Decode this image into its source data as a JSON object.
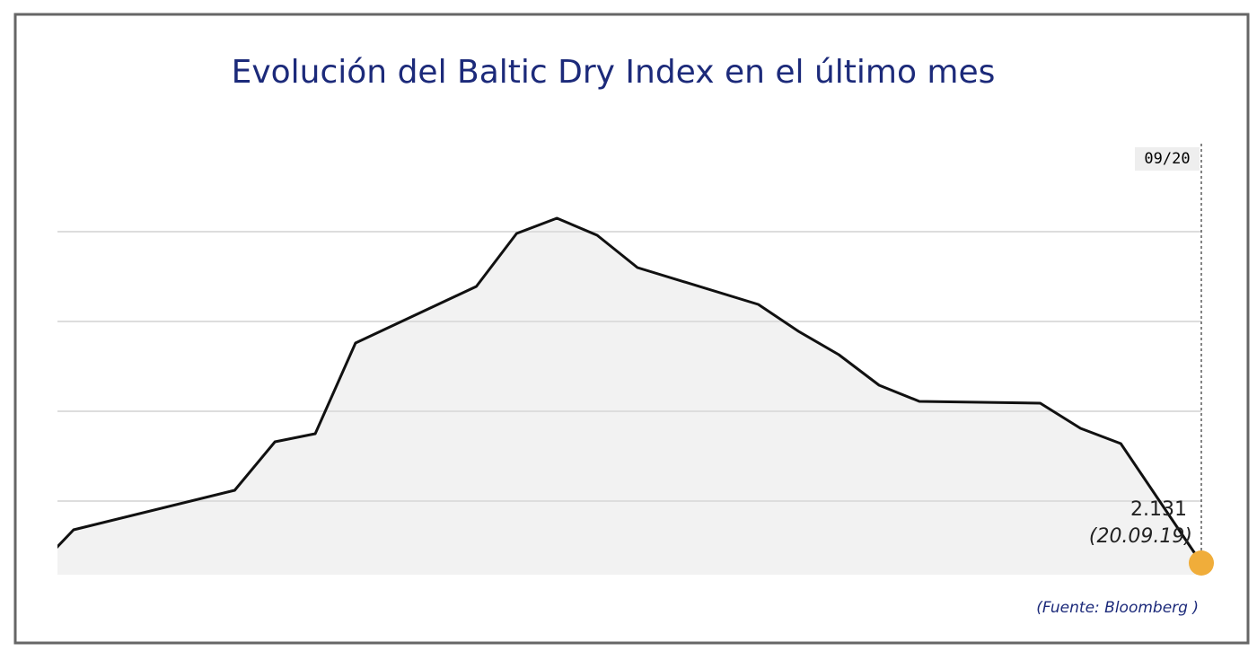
{
  "chart_data": {
    "type": "area",
    "title": "Evolución del Baltic Dry Index en el último mes",
    "x": [
      -29,
      -28,
      -24,
      -23,
      -22,
      -21,
      -18,
      -17,
      -16,
      -15,
      -14,
      -11,
      -10,
      -9,
      -8,
      -7,
      -4,
      -3,
      -2,
      0
    ],
    "values": [
      2121,
      2168,
      2212,
      2266,
      2275,
      2376,
      2439,
      2498,
      2515,
      2496,
      2460,
      2419,
      2389,
      2363,
      2329,
      2311,
      2309,
      2281,
      2264,
      2131
    ],
    "value_labels": [
      null,
      null,
      null,
      null,
      null,
      null,
      null,
      null,
      null,
      null,
      null,
      null,
      null,
      null,
      null,
      null,
      null,
      null,
      null,
      "2.131"
    ],
    "last_date": "(20.09.19)",
    "cursor_label": "09/20",
    "source": "(Fuente: Bloomberg )",
    "xlim": [
      -28.4,
      0
    ],
    "ylim": [
      2118,
      2598
    ],
    "yticks": [
      2200,
      2300,
      2400,
      2500
    ],
    "grid": true,
    "line_color": "#111111",
    "fill_color": "#f2f2f2",
    "marker_color": "#f0ad3a",
    "title_color": "#1c2a7a"
  }
}
